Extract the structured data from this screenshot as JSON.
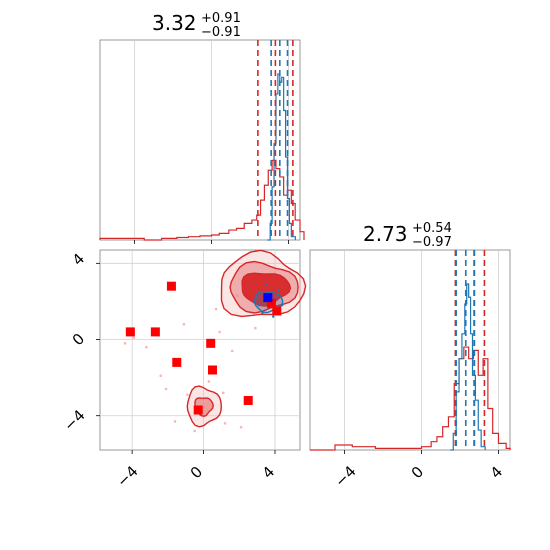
{
  "colors": {
    "red": "#d62728",
    "blue": "#1f77b4",
    "marker_red": "#ff0000",
    "marker_blue": "#0000ff",
    "grid": "#d0d0d0",
    "frame": "#808080"
  },
  "chart_data": [
    {
      "type": "histogram",
      "panel": "top-left",
      "title": {
        "value": "3.32",
        "upper": "+0.91",
        "lower": "−0.91"
      },
      "xlim": [
        -5.8,
        4.6
      ],
      "grid": true,
      "vlines_red": [
        2.41,
        3.32,
        4.23
      ],
      "vlines_blue": [
        3.1,
        3.55,
        3.95
      ],
      "series": [
        {
          "color": "red",
          "bins": [
            [
              -5.8,
              0.01
            ],
            [
              -4.6,
              0.01
            ],
            [
              -3.5,
              0.0
            ],
            [
              -2.6,
              0.01
            ],
            [
              -1.8,
              0.015
            ],
            [
              -1.2,
              0.02
            ],
            [
              -0.6,
              0.025
            ],
            [
              0.0,
              0.03
            ],
            [
              0.4,
              0.04
            ],
            [
              0.9,
              0.06
            ],
            [
              1.3,
              0.07
            ],
            [
              1.7,
              0.1
            ],
            [
              2.1,
              0.12
            ],
            [
              2.35,
              0.15
            ],
            [
              2.55,
              0.24
            ],
            [
              2.75,
              0.33
            ],
            [
              2.95,
              0.42
            ],
            [
              3.15,
              0.48
            ],
            [
              3.35,
              0.43
            ],
            [
              3.55,
              0.38
            ],
            [
              3.75,
              0.27
            ],
            [
              3.95,
              0.3
            ],
            [
              4.15,
              0.22
            ],
            [
              4.35,
              0.12
            ],
            [
              4.6,
              0.05
            ]
          ]
        },
        {
          "color": "blue",
          "bins": [
            [
              2.9,
              0.0
            ],
            [
              3.05,
              0.1
            ],
            [
              3.15,
              0.32
            ],
            [
              3.25,
              0.58
            ],
            [
              3.35,
              0.88
            ],
            [
              3.45,
              1.0
            ],
            [
              3.55,
              0.95
            ],
            [
              3.65,
              0.98
            ],
            [
              3.75,
              0.78
            ],
            [
              3.85,
              0.5
            ],
            [
              3.95,
              0.25
            ],
            [
              4.05,
              0.1
            ],
            [
              4.15,
              0.02
            ]
          ]
        }
      ]
    },
    {
      "type": "scatter-contour",
      "panel": "bottom-left",
      "xlim": [
        -5.8,
        5.4
      ],
      "ylim": [
        -5.8,
        4.7
      ],
      "xticks": [
        "−4",
        "0",
        "4"
      ],
      "yticks": [
        "4",
        "0",
        "−4"
      ],
      "grid": true,
      "red_points": [
        [
          -4.1,
          0.4
        ],
        [
          -2.7,
          0.4
        ],
        [
          -1.8,
          2.8
        ],
        [
          -1.5,
          -1.2
        ],
        [
          0.4,
          -0.2
        ],
        [
          0.5,
          -1.6
        ],
        [
          -0.3,
          -3.7
        ],
        [
          2.5,
          -3.2
        ],
        [
          4.1,
          1.5
        ],
        [
          3.8,
          1.9
        ]
      ],
      "blue_points": [
        [
          3.6,
          2.2
        ]
      ],
      "contours": [
        {
          "color": "red",
          "center": [
            3.2,
            2.8
          ],
          "levels": 3
        },
        {
          "color": "red",
          "center": [
            0.0,
            -3.5
          ],
          "levels": 2
        },
        {
          "color": "blue",
          "center": [
            3.6,
            2.0
          ],
          "levels": 1
        }
      ]
    },
    {
      "type": "histogram",
      "panel": "bottom-right",
      "title": {
        "value": "2.73",
        "upper": "+0.54",
        "lower": "−0.97"
      },
      "xlim": [
        -5.8,
        4.6
      ],
      "xticks": [
        "−4",
        "0",
        "4"
      ],
      "grid": true,
      "vlines_red": [
        1.76,
        2.73,
        3.27
      ],
      "vlines_blue": [
        1.8,
        2.3,
        2.75
      ],
      "series": [
        {
          "color": "red",
          "bins": [
            [
              -5.8,
              0.0
            ],
            [
              -4.5,
              0.03
            ],
            [
              -3.6,
              0.02
            ],
            [
              -2.4,
              0.01
            ],
            [
              -1.2,
              0.01
            ],
            [
              0.0,
              0.02
            ],
            [
              0.5,
              0.05
            ],
            [
              0.8,
              0.08
            ],
            [
              1.1,
              0.14
            ],
            [
              1.4,
              0.2
            ],
            [
              1.7,
              0.4
            ],
            [
              1.95,
              0.55
            ],
            [
              2.2,
              0.62
            ],
            [
              2.45,
              0.55
            ],
            [
              2.7,
              0.6
            ],
            [
              2.95,
              0.45
            ],
            [
              3.2,
              0.55
            ],
            [
              3.45,
              0.25
            ],
            [
              3.7,
              0.1
            ],
            [
              4.0,
              0.04
            ],
            [
              4.4,
              0.01
            ]
          ]
        },
        {
          "color": "blue",
          "bins": [
            [
              1.5,
              0.0
            ],
            [
              1.65,
              0.1
            ],
            [
              1.8,
              0.35
            ],
            [
              1.95,
              0.55
            ],
            [
              2.1,
              0.7
            ],
            [
              2.25,
              0.88
            ],
            [
              2.35,
              1.0
            ],
            [
              2.45,
              0.92
            ],
            [
              2.55,
              0.7
            ],
            [
              2.65,
              0.45
            ],
            [
              2.8,
              0.3
            ],
            [
              2.95,
              0.12
            ],
            [
              3.1,
              0.02
            ]
          ]
        }
      ]
    }
  ]
}
